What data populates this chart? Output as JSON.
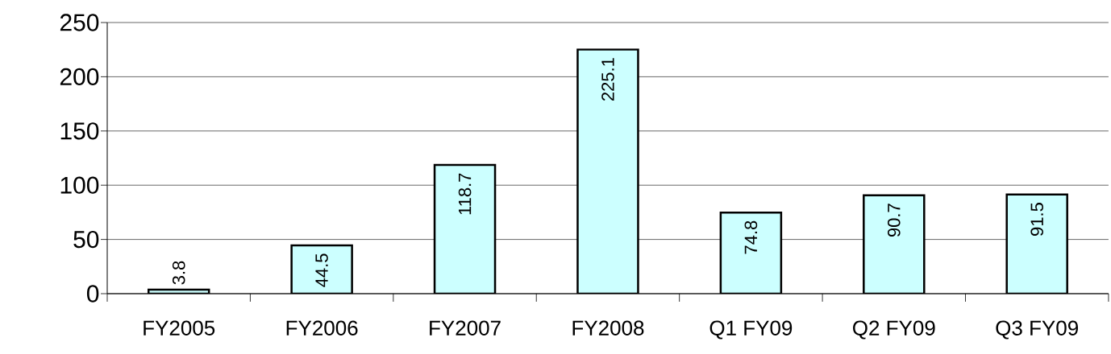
{
  "chart_data": {
    "type": "bar",
    "categories": [
      "FY2005",
      "FY2006",
      "FY2007",
      "FY2008",
      "Q1 FY09",
      "Q2 FY09",
      "Q3 FY09"
    ],
    "values": [
      3.8,
      44.5,
      118.7,
      225.1,
      74.8,
      90.7,
      91.5
    ],
    "value_labels": [
      "3.8",
      "44.5",
      "118.7",
      "225.1",
      "74.8",
      "90.7",
      "91.5"
    ],
    "color": "#ccffff",
    "ylim": [
      0,
      250
    ],
    "yticks": [
      0,
      50,
      100,
      150,
      200,
      250
    ],
    "grid": "y"
  }
}
